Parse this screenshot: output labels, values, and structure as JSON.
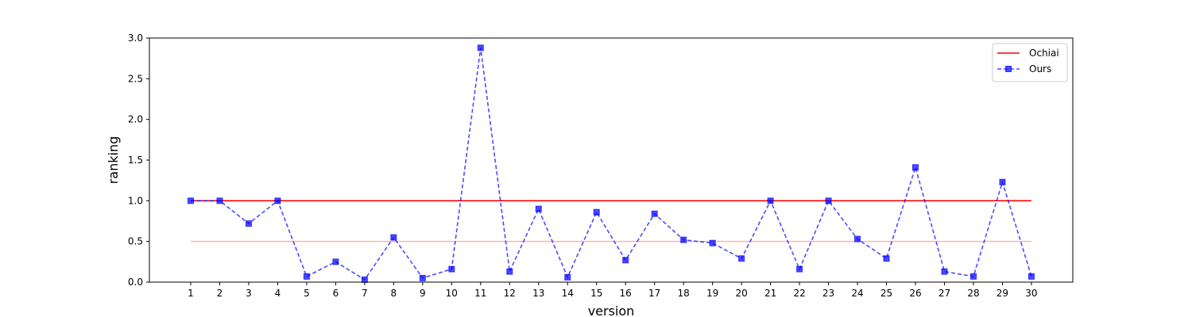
{
  "chart_data": {
    "type": "line",
    "xlabel": "version",
    "ylabel": "ranking",
    "x": [
      1,
      2,
      3,
      4,
      5,
      6,
      7,
      8,
      9,
      10,
      11,
      12,
      13,
      14,
      15,
      16,
      17,
      18,
      19,
      20,
      21,
      22,
      23,
      24,
      25,
      26,
      27,
      28,
      29,
      30
    ],
    "ylim": [
      0,
      3.0
    ],
    "yticks": [
      "0.0",
      "0.5",
      "1.0",
      "1.5",
      "2.0",
      "2.5",
      "3.0"
    ],
    "grid": false,
    "legend_position": "top-right",
    "series": [
      {
        "name": "Ochiai",
        "color": "#ff0000",
        "style": "solid",
        "values": [
          1,
          1,
          1,
          1,
          1,
          1,
          1,
          1,
          1,
          1,
          1,
          1,
          1,
          1,
          1,
          1,
          1,
          1,
          1,
          1,
          1,
          1,
          1,
          1,
          1,
          1,
          1,
          1,
          1,
          1
        ]
      },
      {
        "name": "Ours",
        "color": "#0000ff",
        "style": "dashed",
        "marker": "square",
        "values": [
          1.0,
          1.0,
          0.72,
          1.0,
          0.07,
          0.25,
          0.03,
          0.55,
          0.05,
          0.16,
          2.88,
          0.13,
          0.9,
          0.06,
          0.86,
          0.27,
          0.84,
          0.52,
          0.48,
          0.29,
          1.0,
          0.16,
          1.0,
          0.53,
          0.29,
          1.41,
          0.13,
          0.07,
          1.23,
          0.07
        ]
      }
    ],
    "reference_line": {
      "value": 0.5,
      "color": "#ffb3b3"
    }
  }
}
